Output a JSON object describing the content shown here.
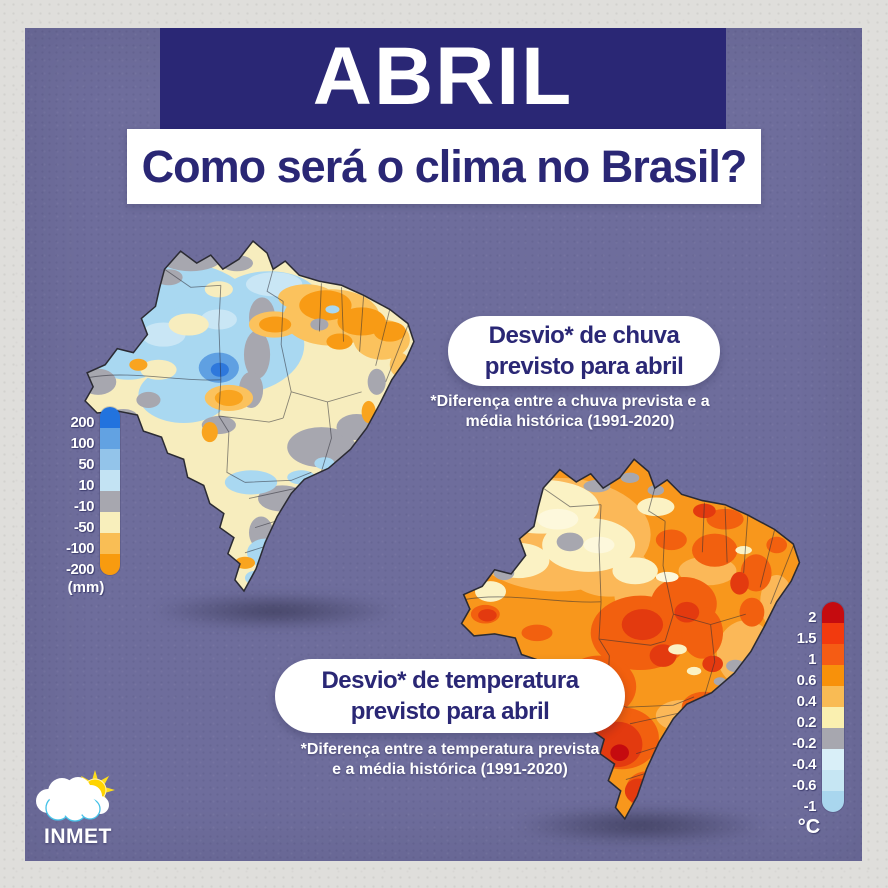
{
  "header": {
    "month": "ABRIL",
    "question": "Como será o clima no Brasil?"
  },
  "rain": {
    "callout": {
      "line1": "Desvio* de chuva",
      "line2": "previsto para abril"
    },
    "footnote": {
      "line1": "*Diferença entre a chuva prevista e a",
      "line2": "média histórica (1991-2020)"
    },
    "legend": {
      "unit": "(mm)",
      "labels": [
        "200",
        "100",
        "50",
        "10",
        "-10",
        "-50",
        "-100",
        "-200"
      ],
      "colors": [
        "#2273DE",
        "#62A2E2",
        "#93C4EA",
        "#C3E3F3",
        "#A7A7AF",
        "#F8EFBC",
        "#F9BE55",
        "#F89B0F"
      ]
    }
  },
  "temperature": {
    "callout": {
      "line1": "Desvio* de temperatura",
      "line2": "previsto para abril"
    },
    "footnote": {
      "line1": "*Diferença entre a temperatura prevista",
      "line2": "e a média histórica (1991-2020)"
    },
    "legend": {
      "unit": "°C",
      "labels": [
        "2",
        "1.5",
        "1",
        "0.6",
        "0.4",
        "0.2",
        "-0.2",
        "-0.4",
        "-0.6",
        "-1"
      ],
      "colors": [
        "#C50B0F",
        "#F23A0E",
        "#F55C14",
        "#F8910A",
        "#F9BB54",
        "#FAF0B0",
        "#A7A7AF",
        "#D9EFF8",
        "#C6E6F3",
        "#A9D6EE"
      ]
    }
  },
  "logo": {
    "label": "INMET"
  },
  "palette": {
    "paper": "#DFDEDB",
    "card": "#6E6D9C",
    "navy": "#2A2775",
    "white": "#FFFFFF",
    "outline": "#2B2B33",
    "sun_yellow": "#FFDE1A",
    "cloud_cyan": "#45C2E8"
  }
}
